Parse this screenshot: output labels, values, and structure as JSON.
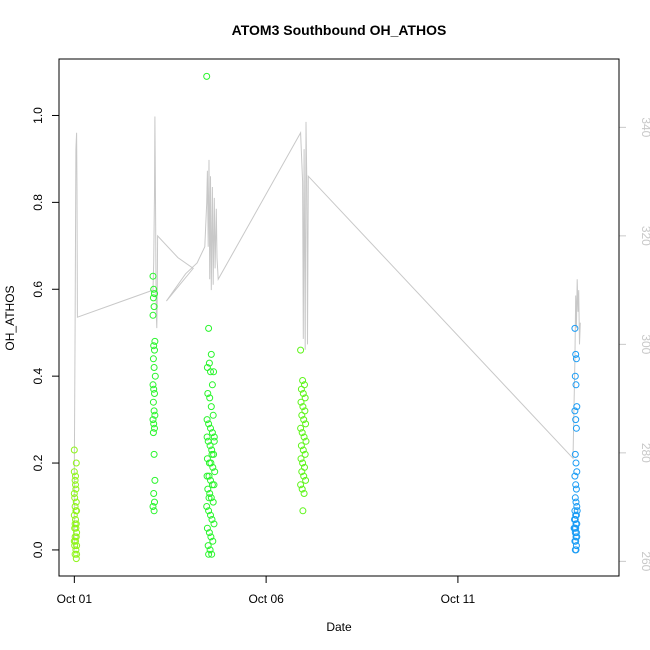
{
  "chart_data": {
    "type": "scatter",
    "title": "ATOM3 Southbound OH_ATHOS",
    "xlabel": "Date",
    "ylabel": "OH_ATHOS",
    "x_ticks": [
      {
        "label": "Oct 01",
        "day": 1
      },
      {
        "label": "Oct 06",
        "day": 6
      },
      {
        "label": "Oct 11",
        "day": 11
      }
    ],
    "xlim": [
      0.6,
      15.2
    ],
    "ylim": [
      -0.06,
      1.13
    ],
    "y_ticks": [
      0.0,
      0.2,
      0.4,
      0.6,
      0.8,
      1.0
    ],
    "y2lim": [
      257.3,
      352.6
    ],
    "y2_ticks": [
      260,
      280,
      300,
      320,
      340
    ],
    "y2_color": "#c8c8c8",
    "secondary_line": {
      "color": "#c8c8c8",
      "points": [
        [
          1.0,
          262
        ],
        [
          1.0,
          276
        ],
        [
          1.02,
          303
        ],
        [
          1.04,
          336
        ],
        [
          1.06,
          339
        ],
        [
          1.07,
          328
        ],
        [
          1.08,
          305
        ],
        [
          3.05,
          310
        ],
        [
          3.07,
          315
        ],
        [
          3.09,
          328
        ],
        [
          3.1,
          342
        ],
        [
          3.11,
          332
        ],
        [
          3.12,
          321
        ],
        [
          3.13,
          311
        ],
        [
          3.14,
          305
        ],
        [
          3.15,
          303
        ],
        [
          3.16,
          308
        ],
        [
          3.17,
          320
        ],
        [
          3.7,
          316
        ],
        [
          4.1,
          314
        ],
        [
          3.4,
          308
        ],
        [
          3.9,
          313
        ],
        [
          4.2,
          315
        ],
        [
          4.4,
          318
        ],
        [
          4.45,
          326
        ],
        [
          4.47,
          332
        ],
        [
          4.49,
          318
        ],
        [
          4.51,
          334
        ],
        [
          4.53,
          312
        ],
        [
          4.55,
          331
        ],
        [
          4.57,
          310
        ],
        [
          4.6,
          329
        ],
        [
          4.62,
          311
        ],
        [
          4.65,
          327
        ],
        [
          4.67,
          314
        ],
        [
          4.7,
          325
        ],
        [
          4.72,
          316
        ],
        [
          4.75,
          312
        ],
        [
          6.9,
          339
        ],
        [
          6.95,
          330
        ],
        [
          6.97,
          301
        ],
        [
          6.99,
          336
        ],
        [
          7.02,
          299
        ],
        [
          7.04,
          341
        ],
        [
          7.06,
          330
        ],
        [
          7.08,
          300
        ],
        [
          7.1,
          331
        ],
        [
          14.0,
          279
        ],
        [
          14.05,
          297
        ],
        [
          14.07,
          309
        ],
        [
          14.09,
          303
        ],
        [
          14.11,
          312
        ],
        [
          14.13,
          306
        ],
        [
          14.15,
          310
        ],
        [
          14.17,
          300
        ],
        [
          14.19,
          304
        ]
      ]
    },
    "series": [
      {
        "color": "#8ff51a",
        "points": [
          [
            1.0,
            0.23
          ],
          [
            1.0,
            0.18
          ],
          [
            1.02,
            0.16
          ],
          [
            1.03,
            0.15
          ],
          [
            1.04,
            0.14
          ],
          [
            1.01,
            0.12
          ],
          [
            1.05,
            0.11
          ],
          [
            1.02,
            0.1
          ],
          [
            1.04,
            0.09
          ],
          [
            1.06,
            0.09
          ],
          [
            1.0,
            0.08
          ],
          [
            1.03,
            0.07
          ],
          [
            1.05,
            0.06
          ],
          [
            1.01,
            0.05
          ],
          [
            1.04,
            0.05
          ],
          [
            1.06,
            0.04
          ],
          [
            1.02,
            0.03
          ],
          [
            1.05,
            0.03
          ],
          [
            1.0,
            0.02
          ],
          [
            1.03,
            0.02
          ],
          [
            1.06,
            0.01
          ],
          [
            1.01,
            0.01
          ],
          [
            1.04,
            0.0
          ],
          [
            1.02,
            -0.01
          ],
          [
            1.06,
            -0.01
          ],
          [
            1.05,
            -0.02
          ],
          [
            1.0,
            0.13
          ],
          [
            1.03,
            0.17
          ],
          [
            1.05,
            0.2
          ],
          [
            1.02,
            0.06
          ]
        ]
      },
      {
        "color": "#29f52c",
        "points": [
          [
            3.05,
            0.63
          ],
          [
            3.07,
            0.6
          ],
          [
            3.09,
            0.59
          ],
          [
            3.06,
            0.58
          ],
          [
            3.08,
            0.56
          ],
          [
            3.05,
            0.54
          ],
          [
            3.1,
            0.48
          ],
          [
            3.07,
            0.47
          ],
          [
            3.09,
            0.46
          ],
          [
            3.06,
            0.44
          ],
          [
            3.08,
            0.42
          ],
          [
            3.11,
            0.4
          ],
          [
            3.05,
            0.38
          ],
          [
            3.07,
            0.37
          ],
          [
            3.09,
            0.36
          ],
          [
            3.06,
            0.34
          ],
          [
            3.08,
            0.32
          ],
          [
            3.1,
            0.31
          ],
          [
            3.05,
            0.3
          ],
          [
            3.07,
            0.29
          ],
          [
            3.09,
            0.28
          ],
          [
            3.06,
            0.27
          ],
          [
            3.08,
            0.22
          ],
          [
            3.1,
            0.16
          ],
          [
            3.07,
            0.13
          ],
          [
            3.09,
            0.11
          ],
          [
            3.05,
            0.1
          ],
          [
            3.08,
            0.09
          ],
          [
            4.45,
            1.09
          ],
          [
            4.5,
            0.51
          ],
          [
            4.52,
            0.43
          ],
          [
            4.47,
            0.42
          ],
          [
            4.55,
            0.41
          ],
          [
            4.6,
            0.38
          ],
          [
            4.48,
            0.36
          ],
          [
            4.53,
            0.35
          ],
          [
            4.57,
            0.33
          ],
          [
            4.62,
            0.31
          ],
          [
            4.46,
            0.3
          ],
          [
            4.5,
            0.29
          ],
          [
            4.55,
            0.28
          ],
          [
            4.6,
            0.27
          ],
          [
            4.65,
            0.26
          ],
          [
            4.49,
            0.25
          ],
          [
            4.54,
            0.24
          ],
          [
            4.58,
            0.23
          ],
          [
            4.63,
            0.22
          ],
          [
            4.47,
            0.21
          ],
          [
            4.52,
            0.2
          ],
          [
            4.56,
            0.2
          ],
          [
            4.61,
            0.19
          ],
          [
            4.66,
            0.18
          ],
          [
            4.46,
            0.17
          ],
          [
            4.51,
            0.17
          ],
          [
            4.55,
            0.16
          ],
          [
            4.6,
            0.15
          ],
          [
            4.64,
            0.15
          ],
          [
            4.48,
            0.14
          ],
          [
            4.53,
            0.13
          ],
          [
            4.57,
            0.12
          ],
          [
            4.62,
            0.11
          ],
          [
            4.45,
            0.1
          ],
          [
            4.5,
            0.09
          ],
          [
            4.55,
            0.08
          ],
          [
            4.59,
            0.07
          ],
          [
            4.64,
            0.06
          ],
          [
            4.47,
            0.05
          ],
          [
            4.52,
            0.04
          ],
          [
            4.56,
            0.03
          ],
          [
            4.61,
            0.02
          ],
          [
            4.49,
            0.01
          ],
          [
            4.54,
            0.0
          ],
          [
            4.58,
            -0.01
          ],
          [
            4.5,
            -0.01
          ],
          [
            4.57,
            0.45
          ],
          [
            4.63,
            0.41
          ],
          [
            4.46,
            0.26
          ],
          [
            4.59,
            0.22
          ],
          [
            4.65,
            0.25
          ],
          [
            4.51,
            0.12
          ]
        ]
      },
      {
        "color": "#5ef51a",
        "points": [
          [
            6.9,
            0.46
          ],
          [
            6.95,
            0.39
          ],
          [
            7.0,
            0.38
          ],
          [
            6.92,
            0.37
          ],
          [
            6.97,
            0.36
          ],
          [
            7.02,
            0.35
          ],
          [
            6.91,
            0.34
          ],
          [
            6.96,
            0.33
          ],
          [
            7.01,
            0.32
          ],
          [
            6.93,
            0.31
          ],
          [
            6.98,
            0.3
          ],
          [
            7.03,
            0.29
          ],
          [
            6.9,
            0.28
          ],
          [
            6.94,
            0.27
          ],
          [
            6.99,
            0.26
          ],
          [
            7.04,
            0.25
          ],
          [
            6.92,
            0.24
          ],
          [
            6.97,
            0.23
          ],
          [
            7.02,
            0.22
          ],
          [
            6.91,
            0.21
          ],
          [
            6.95,
            0.2
          ],
          [
            7.0,
            0.19
          ],
          [
            6.93,
            0.18
          ],
          [
            6.98,
            0.17
          ],
          [
            7.03,
            0.16
          ],
          [
            6.9,
            0.15
          ],
          [
            6.94,
            0.14
          ],
          [
            6.99,
            0.13
          ],
          [
            6.96,
            0.09
          ]
        ]
      },
      {
        "color": "#1a9cf5",
        "points": [
          [
            14.05,
            0.51
          ],
          [
            14.07,
            0.45
          ],
          [
            14.09,
            0.44
          ],
          [
            14.06,
            0.4
          ],
          [
            14.08,
            0.38
          ],
          [
            14.1,
            0.33
          ],
          [
            14.05,
            0.32
          ],
          [
            14.07,
            0.3
          ],
          [
            14.09,
            0.28
          ],
          [
            14.06,
            0.22
          ],
          [
            14.08,
            0.2
          ],
          [
            14.1,
            0.18
          ],
          [
            14.05,
            0.17
          ],
          [
            14.07,
            0.15
          ],
          [
            14.09,
            0.14
          ],
          [
            14.06,
            0.12
          ],
          [
            14.08,
            0.11
          ],
          [
            14.1,
            0.1
          ],
          [
            14.05,
            0.09
          ],
          [
            14.07,
            0.08
          ],
          [
            14.09,
            0.08
          ],
          [
            14.06,
            0.07
          ],
          [
            14.08,
            0.06
          ],
          [
            14.1,
            0.06
          ],
          [
            14.05,
            0.05
          ],
          [
            14.07,
            0.05
          ],
          [
            14.09,
            0.04
          ],
          [
            14.06,
            0.04
          ],
          [
            14.08,
            0.03
          ],
          [
            14.1,
            0.03
          ],
          [
            14.05,
            0.02
          ],
          [
            14.07,
            0.02
          ],
          [
            14.09,
            0.01
          ],
          [
            14.06,
            0.0
          ],
          [
            14.08,
            0.0
          ],
          [
            14.04,
            0.07
          ],
          [
            14.11,
            0.09
          ],
          [
            14.03,
            0.05
          ]
        ]
      }
    ]
  }
}
